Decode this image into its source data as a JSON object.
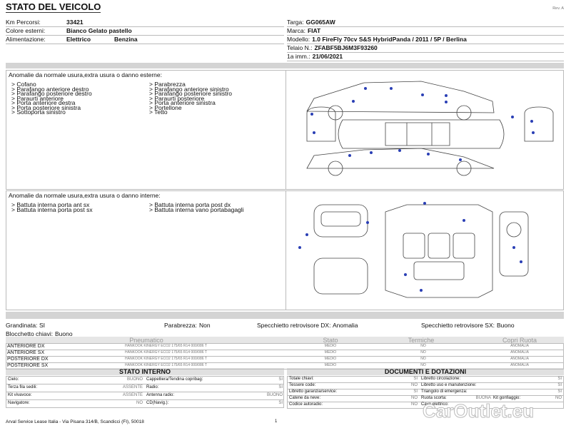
{
  "header": {
    "title": "STATO DEL VEICOLO",
    "revision": "Rev. A"
  },
  "vehicle": {
    "left": [
      {
        "label": "Km Percorsi:",
        "values": [
          "33421"
        ]
      },
      {
        "label": "Colore esterni:",
        "values": [
          "Bianco Gelato pastello"
        ]
      },
      {
        "label": "Alimentazione:",
        "values": [
          "Elettrico",
          "Benzina"
        ]
      }
    ],
    "right": [
      {
        "label": "Targa:",
        "values": [
          "GG065AW"
        ]
      },
      {
        "label": "Marca:",
        "values": [
          "FIAT"
        ]
      },
      {
        "label": "Modello:",
        "values": [
          "1.0 FireFly 70cv S&S HybridPanda / 2011 / 5P / Berlina"
        ]
      },
      {
        "label": "Telaio N.:",
        "values": [
          "ZFABF5BJ6M3F93260"
        ]
      },
      {
        "label": "1a imm.:",
        "values": [
          "21/06/2021"
        ]
      }
    ]
  },
  "exterior": {
    "title": "Anomalie da normale usura,extra usura o danno esterne:",
    "items": [
      [
        "> Cofano",
        "> Parafango anteriore destro",
        "> Parafango posteriore destro",
        "> Paraurti anteriore",
        "> Porta anteriore destra",
        "> Porta posteriore sinistra",
        "> Sottoporta sinistro"
      ],
      [
        "> Parabrezza",
        "> Parafango anteriore sinistro",
        "> Parafango posteriore sinistro",
        "> Paraurti posteriore",
        "> Porta anteriore sinistra",
        "> Portellone",
        "> Tetto"
      ]
    ]
  },
  "interior": {
    "title": "Anomalie da normale usura,extra usura o danno interne:",
    "items": [
      [
        "> Battuta interna porta ant sx",
        "> Battuta interna porta post sx"
      ],
      [
        "> Battuta interna porta post dx",
        "> Battuta interna vano portabagagli"
      ]
    ]
  },
  "conditions": [
    [
      {
        "label": "Grandinata:",
        "value": "SI"
      },
      {
        "label": "Parabrezza:",
        "value": "Non"
      },
      {
        "label": "Specchietto retrovisore DX:",
        "value": "Anomalia"
      },
      {
        "label": "Specchietto retrovisore SX:",
        "value": "Buono"
      }
    ],
    [
      {
        "label": "Blocchetto chiavi:",
        "value": "Buono"
      }
    ]
  ],
  "tyres": {
    "headers": [
      "Pneumatico",
      "Stato",
      "Termiche",
      "Copri Ruota"
    ],
    "rows": [
      [
        "ANTERIORE DX",
        "HANKOOK KINERGY ECO2 175/65 R14 000/086 T",
        "MEDIO",
        "NO",
        "ANOMALIA"
      ],
      [
        "ANTERIORE SX",
        "HANKOOK KINERGY ECO2 175/65 R14 000/086 T",
        "MEDIO",
        "NO",
        "ANOMALIA"
      ],
      [
        "POSTERIORE DX",
        "HANKOOK KINERGY ECO2 175/65 R14 000/086 T",
        "MEDIO",
        "NO",
        "ANOMALIA"
      ],
      [
        "POSTERIORE SX",
        "HANKOOK KINERGY ECO2 175/65 R14 000/086 T",
        "MEDIO",
        "NO",
        "ANOMALIA"
      ]
    ]
  },
  "interior_state": {
    "title": "STATO INTERNO",
    "rows": [
      [
        "Cielo:",
        "BUONO",
        "Cappelliera/Tendina copribag:",
        "SI"
      ],
      [
        "Terza fila sedili:",
        "ASSENTE",
        "Radio:",
        "SI"
      ],
      [
        "Kit vivavoce:",
        "ASSENTE",
        "Antenna radio:",
        "BUONO"
      ],
      [
        "Navigatore:",
        "NO",
        "CD(Navig.):",
        "SI"
      ]
    ]
  },
  "documents": {
    "title": "DOCUMENTI E DOTAZIONI",
    "rows": [
      [
        "Totale chiavi:",
        "SI",
        "Libretto circolazione:",
        "SI"
      ],
      [
        "Tessere code:",
        "NO",
        "Libretto uso e manutenzione:",
        "SI"
      ],
      [
        "Libretto garanzia/service:",
        "SI",
        "Triangolo di emergenza:",
        "SI"
      ],
      [
        "Catene da neve:",
        "NO",
        "Ruota scorta:",
        "BUONA",
        "Kit gonfiaggio:",
        "NO"
      ],
      [
        "Codice autoradio:",
        "NO",
        "Cavo elettrico:"
      ]
    ]
  },
  "footer": {
    "address": "Arval Service Lease Italia - Via Pisana 314/B, Scandicci (FI), 50018",
    "page": "1"
  },
  "watermark": "CarOutlet.eu"
}
